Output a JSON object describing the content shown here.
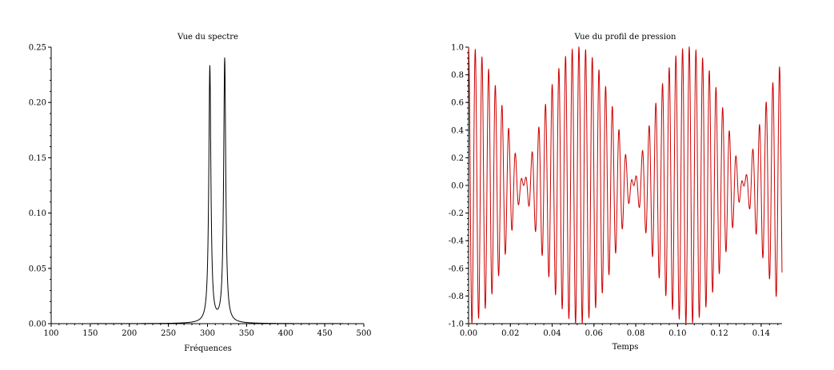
{
  "chart_data": [
    {
      "type": "line",
      "title": "Vue du spectre",
      "xlabel": "Fréquences",
      "ylabel": "",
      "xlim": [
        100,
        500
      ],
      "ylim": [
        0,
        0.25
      ],
      "grid": false,
      "color": "#000000",
      "x_ticks": [
        "100",
        "150",
        "200",
        "250",
        "300",
        "350",
        "400",
        "450",
        "500"
      ],
      "y_ticks": [
        "0.00",
        "0.05",
        "0.10",
        "0.15",
        "0.20",
        "0.25"
      ],
      "peaks": [
        {
          "x": 303,
          "y": 0.232
        },
        {
          "x": 322,
          "y": 0.239
        }
      ]
    },
    {
      "type": "line",
      "title": "Vue du profil de pression",
      "xlabel": "Temps",
      "ylabel": "",
      "xlim": [
        0,
        0.15
      ],
      "ylim": [
        -1.0,
        1.0
      ],
      "grid": false,
      "color": "#cc0000",
      "x_ticks": [
        "0.00",
        "0.02",
        "0.04",
        "0.06",
        "0.08",
        "0.10",
        "0.12",
        "0.14"
      ],
      "y_ticks": [
        "1.0",
        "0.8",
        "0.6",
        "0.4",
        "0.2",
        "0.0",
        "-0.2",
        "-0.4",
        "-0.6",
        "-0.8",
        "-1.0"
      ],
      "components_hz": [
        303,
        322
      ]
    }
  ]
}
